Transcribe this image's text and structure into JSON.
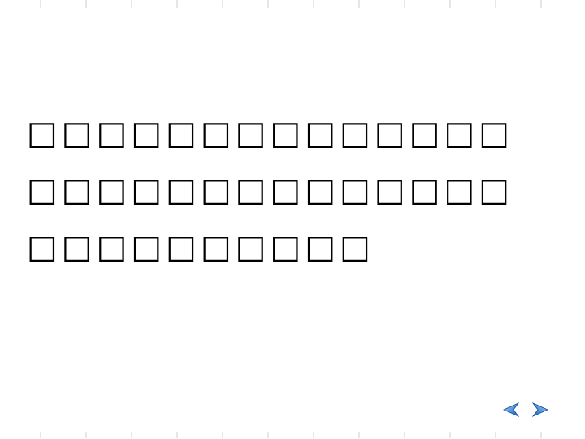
{
  "slide": {
    "lines": [
      "□□□□□□□□□□□□□□",
      "□□□□□□□□□□□□□□",
      "□□□□□□□□□□"
    ]
  },
  "navigation": {
    "prev_icon": "arrow-left-icon",
    "next_icon": "arrow-right-icon",
    "arrow_color": "#1a62b8"
  }
}
